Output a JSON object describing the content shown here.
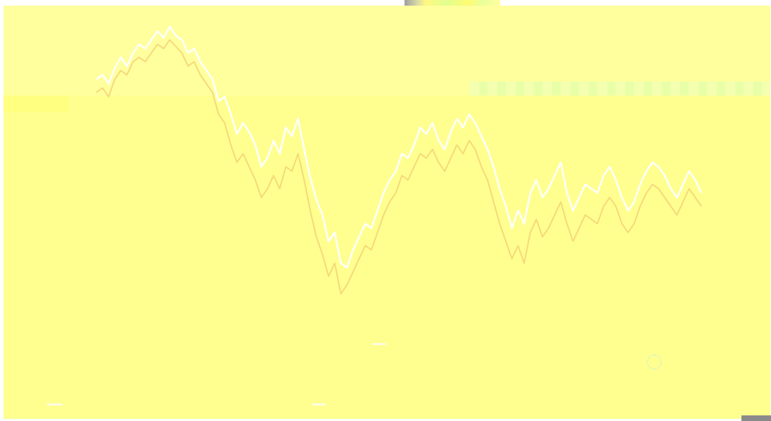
{
  "screen": {
    "background": "#ffffff",
    "canvas_color": "#ffff9e",
    "band_color": "#ffff90"
  },
  "chart_data": {
    "type": "line",
    "title": "",
    "xlabel": "",
    "ylabel": "",
    "grid": false,
    "legend": "none",
    "series": [
      {
        "color": "#ffffff",
        "values": [
          80,
          82,
          78,
          85,
          90,
          86,
          92,
          96,
          94,
          98,
          102,
          99,
          104,
          100,
          98,
          92,
          94,
          88,
          84,
          80,
          70,
          72,
          64,
          55,
          60,
          56,
          50,
          40,
          44,
          52,
          46,
          58,
          54,
          62,
          48,
          35,
          25,
          18,
          6,
          10,
          -4,
          -6,
          2,
          8,
          14,
          12,
          20,
          28,
          34,
          38,
          46,
          44,
          50,
          58,
          55,
          60,
          52,
          48,
          56,
          62,
          58,
          64,
          60,
          54,
          48,
          40,
          30,
          22,
          12,
          20,
          14,
          28,
          34,
          26,
          30,
          36,
          42,
          28,
          20,
          26,
          32,
          30,
          28,
          36,
          40,
          34,
          26,
          20,
          24,
          32,
          38,
          42,
          40,
          36,
          30,
          26,
          32,
          38,
          34,
          28
        ]
      },
      {
        "color": "#f5d97a",
        "values": [
          74,
          76,
          72,
          80,
          84,
          82,
          88,
          90,
          88,
          92,
          96,
          94,
          98,
          95,
          92,
          86,
          88,
          82,
          78,
          74,
          64,
          60,
          50,
          42,
          46,
          40,
          34,
          26,
          30,
          36,
          30,
          40,
          38,
          46,
          34,
          20,
          8,
          0,
          -10,
          -4,
          -18,
          -14,
          -8,
          -2,
          4,
          2,
          10,
          18,
          24,
          28,
          36,
          34,
          40,
          46,
          44,
          48,
          42,
          38,
          44,
          50,
          46,
          52,
          48,
          40,
          34,
          24,
          14,
          6,
          -2,
          4,
          -4,
          10,
          16,
          8,
          12,
          18,
          24,
          14,
          6,
          12,
          18,
          16,
          14,
          22,
          26,
          22,
          14,
          10,
          14,
          22,
          28,
          32,
          30,
          26,
          22,
          18,
          24,
          30,
          26,
          22
        ]
      }
    ]
  },
  "markers": [
    {
      "name": "crosshair",
      "icon": "target-circle-icon"
    }
  ]
}
